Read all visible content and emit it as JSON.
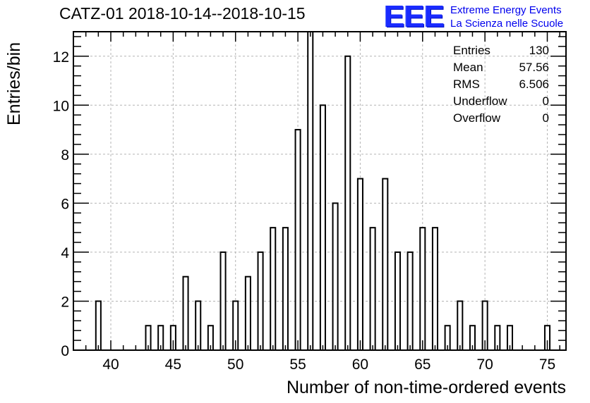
{
  "chart_data": {
    "type": "bar",
    "title": "CATZ-01 2018-10-14--2018-10-15",
    "xlabel": "Number of non-time-ordered events",
    "ylabel": "Entries/bin",
    "xlim": [
      37,
      76.5
    ],
    "ylim": [
      0,
      13.0
    ],
    "x_ticks": [
      40,
      45,
      50,
      55,
      60,
      65,
      70,
      75
    ],
    "y_ticks": [
      0,
      2,
      4,
      6,
      8,
      10,
      12
    ],
    "grid": true,
    "bins": [
      {
        "x": 39,
        "count": 2
      },
      {
        "x": 43,
        "count": 1
      },
      {
        "x": 44,
        "count": 1
      },
      {
        "x": 45,
        "count": 1
      },
      {
        "x": 46,
        "count": 3
      },
      {
        "x": 47,
        "count": 2
      },
      {
        "x": 48,
        "count": 1
      },
      {
        "x": 49,
        "count": 4
      },
      {
        "x": 50,
        "count": 2
      },
      {
        "x": 51,
        "count": 3
      },
      {
        "x": 52,
        "count": 4
      },
      {
        "x": 53,
        "count": 5
      },
      {
        "x": 54,
        "count": 5
      },
      {
        "x": 55,
        "count": 9
      },
      {
        "x": 56,
        "count": 13
      },
      {
        "x": 57,
        "count": 10
      },
      {
        "x": 58,
        "count": 6
      },
      {
        "x": 59,
        "count": 12
      },
      {
        "x": 60,
        "count": 7
      },
      {
        "x": 61,
        "count": 5
      },
      {
        "x": 62,
        "count": 7
      },
      {
        "x": 63,
        "count": 4
      },
      {
        "x": 64,
        "count": 4
      },
      {
        "x": 65,
        "count": 5
      },
      {
        "x": 66,
        "count": 5
      },
      {
        "x": 67,
        "count": 1
      },
      {
        "x": 68,
        "count": 2
      },
      {
        "x": 69,
        "count": 1
      },
      {
        "x": 70,
        "count": 2
      },
      {
        "x": 71,
        "count": 1
      },
      {
        "x": 72,
        "count": 1
      },
      {
        "x": 75,
        "count": 1
      }
    ],
    "stats": [
      {
        "label": "Entries",
        "value": "130"
      },
      {
        "label": "Mean",
        "value": "57.56"
      },
      {
        "label": "RMS",
        "value": "6.506"
      },
      {
        "label": "Underflow",
        "value": "0"
      },
      {
        "label": "Overflow",
        "value": "0"
      }
    ]
  },
  "logo": {
    "mark": "EEE",
    "line1": "Extreme Energy Events",
    "line2": "La Scienza nelle Scuole"
  }
}
